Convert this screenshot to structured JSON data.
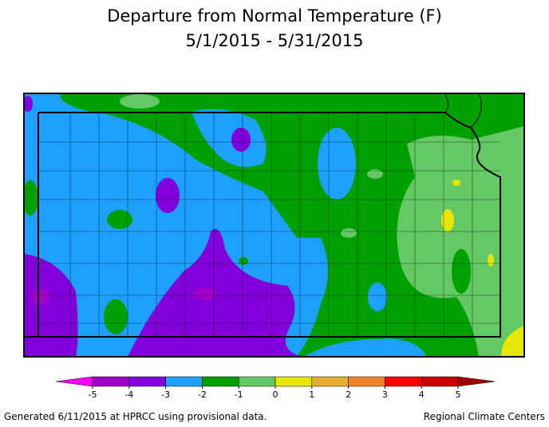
{
  "header": {
    "title": "Departure from Normal Temperature (F)",
    "subtitle": "5/1/2015 - 5/31/2015"
  },
  "legend": {
    "ticks": [
      -5,
      -4,
      -3,
      -2,
      -1,
      0,
      1,
      2,
      3,
      4,
      5
    ],
    "below_color": "#ff00ff",
    "colors": [
      "#a000c8",
      "#8200dc",
      "#1ea0ff",
      "#00a000",
      "#64c864",
      "#e6e600",
      "#e6af2d",
      "#f08228",
      "#fa0000",
      "#c80000"
    ],
    "above_color": "#a00000"
  },
  "footer": {
    "left": "Generated 6/11/2015 at HPRCC using provisional data.",
    "right": "Regional Climate Centers"
  }
}
